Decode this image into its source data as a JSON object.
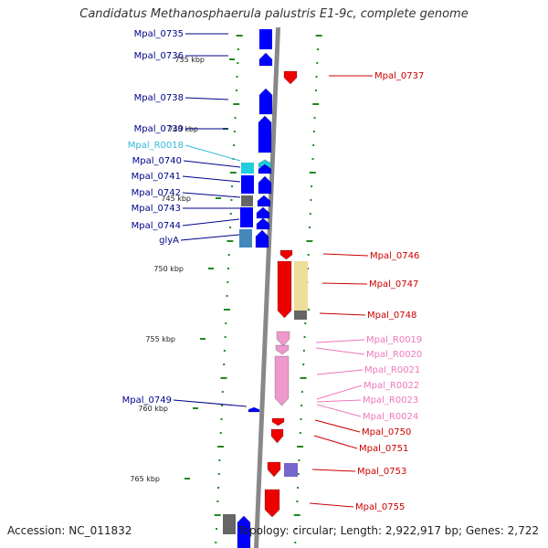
{
  "title": "Candidatus Methanosphaerula palustris E1-9c, complete genome",
  "accession": "Accession: NC_011832",
  "summary": "Topology: circular; Length: 2,922,917 bp; Genes: 2,722",
  "colors": {
    "gene_cds": "#0000ff",
    "gene_cds_label": "#00008b",
    "rna": "#22ccdd",
    "rna_label": "#33bbdd",
    "cds_red": "#ee0000",
    "label_red": "#cc0000",
    "trna_pink": "#ee99cc",
    "trna_label": "#ee77bb",
    "pseudo_gray": "#666666",
    "yellow_feature": "#eedd99",
    "purple_feature": "#7766cc",
    "steelblue_feature": "#4488bb",
    "backbone": "#888888",
    "dots": "#228822"
  },
  "scale_ticks": [
    "735 kbp",
    "740 kbp",
    "745 kbp",
    "750 kbp",
    "755 kbp",
    "760 kbp",
    "765 kbp"
  ],
  "left_labels": [
    {
      "text": "Mpal_0735",
      "kind": "cds"
    },
    {
      "text": "Mpal_0736",
      "kind": "cds"
    },
    {
      "text": "Mpal_0738",
      "kind": "cds"
    },
    {
      "text": "Mpal_0739",
      "kind": "cds"
    },
    {
      "text": "Mpal_R0018",
      "kind": "rna"
    },
    {
      "text": "Mpal_0740",
      "kind": "cds"
    },
    {
      "text": "Mpal_0741",
      "kind": "cds"
    },
    {
      "text": "Mpal_0742",
      "kind": "cds"
    },
    {
      "text": "Mpal_0743",
      "kind": "cds"
    },
    {
      "text": "Mpal_0744",
      "kind": "cds"
    },
    {
      "text": "glyA",
      "kind": "cds"
    },
    {
      "text": "Mpal_0749",
      "kind": "cds"
    }
  ],
  "right_labels": [
    {
      "text": "Mpal_0737",
      "kind": "red"
    },
    {
      "text": "Mpal_0746",
      "kind": "red"
    },
    {
      "text": "Mpal_0747",
      "kind": "red"
    },
    {
      "text": "Mpal_0748",
      "kind": "red"
    },
    {
      "text": "Mpal_R0019",
      "kind": "pink"
    },
    {
      "text": "Mpal_R0020",
      "kind": "pink"
    },
    {
      "text": "Mpal_R0021",
      "kind": "pink"
    },
    {
      "text": "Mpal_R0022",
      "kind": "pink"
    },
    {
      "text": "Mpal_R0023",
      "kind": "pink"
    },
    {
      "text": "Mpal_R0024",
      "kind": "pink"
    },
    {
      "text": "Mpal_0750",
      "kind": "red"
    },
    {
      "text": "Mpal_0751",
      "kind": "red"
    },
    {
      "text": "Mpal_0753",
      "kind": "red"
    },
    {
      "text": "Mpal_0755",
      "kind": "red"
    }
  ]
}
